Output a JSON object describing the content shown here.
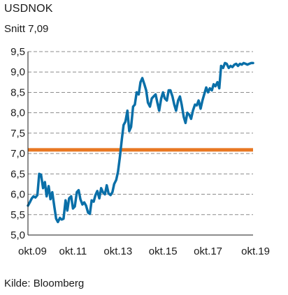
{
  "chart_data": {
    "type": "line",
    "title": "USDNOK",
    "subtitle": "Snitt 7,09",
    "source": "Kilde: Bloomberg",
    "ylim": [
      5.0,
      9.5
    ],
    "xlim": [
      2009.75,
      2019.75
    ],
    "yticks": [
      {
        "value": 5.0,
        "label": "5,0"
      },
      {
        "value": 5.5,
        "label": "5,5"
      },
      {
        "value": 6.0,
        "label": "6,0"
      },
      {
        "value": 6.5,
        "label": "6,5"
      },
      {
        "value": 7.0,
        "label": "7,0"
      },
      {
        "value": 7.5,
        "label": "7,5"
      },
      {
        "value": 8.0,
        "label": "8,0"
      },
      {
        "value": 8.5,
        "label": "8,5"
      },
      {
        "value": 9.0,
        "label": "9,0"
      },
      {
        "value": 9.5,
        "label": "9,5"
      }
    ],
    "xticks": [
      {
        "value": 2009.75,
        "label": "okt.09"
      },
      {
        "value": 2011.75,
        "label": "okt.11"
      },
      {
        "value": 2013.75,
        "label": "okt.13"
      },
      {
        "value": 2015.75,
        "label": "okt.15"
      },
      {
        "value": 2017.75,
        "label": "okt.17"
      },
      {
        "value": 2019.75,
        "label": "okt.19"
      }
    ],
    "grid": {
      "horizontal": true,
      "style": "dashed"
    },
    "reference_line": {
      "value": 7.09,
      "color": "#e87722"
    },
    "series": [
      {
        "color": "#0a6fa8",
        "x": [
          2009.75,
          2009.83,
          2009.92,
          2010.0,
          2010.08,
          2010.17,
          2010.25,
          2010.33,
          2010.42,
          2010.5,
          2010.58,
          2010.67,
          2010.75,
          2010.83,
          2010.92,
          2011.0,
          2011.08,
          2011.17,
          2011.25,
          2011.33,
          2011.42,
          2011.5,
          2011.58,
          2011.67,
          2011.75,
          2011.83,
          2011.92,
          2012.0,
          2012.08,
          2012.17,
          2012.25,
          2012.33,
          2012.42,
          2012.5,
          2012.58,
          2012.67,
          2012.75,
          2012.83,
          2012.92,
          2013.0,
          2013.08,
          2013.17,
          2013.25,
          2013.33,
          2013.42,
          2013.5,
          2013.58,
          2013.67,
          2013.75,
          2013.83,
          2013.92,
          2014.0,
          2014.08,
          2014.17,
          2014.25,
          2014.33,
          2014.42,
          2014.5,
          2014.58,
          2014.67,
          2014.75,
          2014.83,
          2014.92,
          2015.0,
          2015.08,
          2015.17,
          2015.25,
          2015.33,
          2015.42,
          2015.5,
          2015.58,
          2015.67,
          2015.75,
          2015.83,
          2015.92,
          2016.0,
          2016.08,
          2016.17,
          2016.25,
          2016.33,
          2016.42,
          2016.5,
          2016.58,
          2016.67,
          2016.75,
          2016.83,
          2016.92,
          2017.0,
          2017.08,
          2017.17,
          2017.25,
          2017.33,
          2017.42,
          2017.5,
          2017.58,
          2017.67,
          2017.75,
          2017.83,
          2017.92,
          2018.0,
          2018.08,
          2018.17,
          2018.25,
          2018.33,
          2018.42,
          2018.5,
          2018.58,
          2018.67,
          2018.75,
          2018.83,
          2018.92,
          2019.0,
          2019.08,
          2019.17,
          2019.25,
          2019.33,
          2019.42,
          2019.5,
          2019.58,
          2019.67,
          2019.75
        ],
        "values": [
          5.72,
          5.8,
          5.9,
          5.95,
          5.92,
          5.98,
          6.5,
          6.48,
          6.15,
          6.3,
          5.95,
          6.2,
          5.88,
          6.05,
          5.7,
          5.4,
          5.32,
          5.42,
          5.38,
          5.4,
          5.85,
          5.6,
          5.9,
          5.95,
          5.65,
          5.7,
          6.05,
          6.1,
          5.88,
          5.75,
          5.8,
          5.72,
          5.55,
          5.52,
          5.85,
          5.82,
          5.98,
          6.08,
          5.9,
          6.15,
          6.05,
          6.0,
          6.22,
          6.02,
          5.98,
          6.05,
          6.25,
          6.35,
          6.55,
          6.9,
          7.35,
          7.7,
          7.78,
          8.05,
          7.55,
          7.65,
          8.15,
          8.2,
          8.5,
          8.45,
          8.75,
          8.85,
          8.7,
          8.55,
          8.25,
          8.15,
          8.35,
          8.4,
          8.45,
          8.25,
          8.05,
          8.35,
          8.5,
          8.35,
          8.3,
          8.55,
          8.55,
          8.4,
          8.2,
          8.05,
          8.3,
          8.4,
          8.2,
          7.9,
          7.75,
          8.0,
          7.95,
          7.85,
          8.05,
          8.2,
          8.18,
          8.3,
          8.1,
          8.3,
          8.45,
          8.62,
          8.5,
          8.6,
          8.55,
          8.7,
          8.65,
          8.75,
          8.6,
          9.15,
          9.1,
          9.22,
          9.2,
          9.1,
          9.15,
          9.12,
          9.18,
          9.2,
          9.15,
          9.2,
          9.18,
          9.22,
          9.2,
          9.18,
          9.2,
          9.22,
          9.22
        ]
      }
    ]
  }
}
